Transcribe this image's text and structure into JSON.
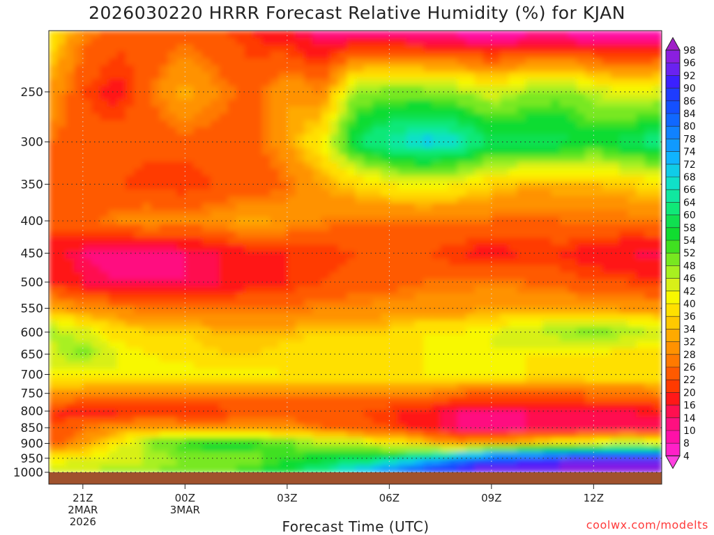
{
  "title": "2026030220 HRRR Forecast Relative Humidity (%) for KJAN",
  "xlabel": "Forecast Time (UTC)",
  "credit": "coolwx.com/modelts",
  "colors": {
    "ground": "#a0522d",
    "grid": "#333333"
  },
  "chart_data": {
    "type": "heatmap",
    "title": "2026030220 HRRR Forecast Relative Humidity (%) for KJAN",
    "xlabel": "Forecast Time (UTC)",
    "ylabel": "",
    "x_tick_labels": [
      {
        "lines": [
          "21Z",
          "2MAR",
          "2026"
        ],
        "hour": 1
      },
      {
        "lines": [
          "00Z",
          "3MAR"
        ],
        "hour": 4
      },
      {
        "lines": [
          "03Z"
        ],
        "hour": 7
      },
      {
        "lines": [
          "06Z"
        ],
        "hour": 10
      },
      {
        "lines": [
          "09Z"
        ],
        "hour": 13
      },
      {
        "lines": [
          "12Z"
        ],
        "hour": 16
      }
    ],
    "x_hours": [
      0,
      1,
      2,
      3,
      4,
      5,
      6,
      7,
      8,
      9,
      10,
      11,
      12,
      13,
      14,
      15,
      16,
      17,
      18
    ],
    "y_tick_labels": [
      "250",
      "300",
      "350",
      "400",
      "450",
      "500",
      "550",
      "600",
      "650",
      "700",
      "750",
      "800",
      "850",
      "900",
      "950",
      "1000"
    ],
    "pressure_levels": [
      200,
      250,
      300,
      350,
      400,
      450,
      500,
      550,
      600,
      650,
      700,
      750,
      800,
      850,
      900,
      950,
      1000
    ],
    "rh": [
      [
        40,
        28,
        24,
        22,
        24,
        22,
        20,
        16,
        12,
        10,
        10,
        8,
        8,
        6,
        8,
        8,
        6,
        6,
        8
      ],
      [
        32,
        22,
        18,
        26,
        34,
        28,
        24,
        32,
        28,
        48,
        50,
        50,
        48,
        44,
        48,
        50,
        46,
        42,
        44
      ],
      [
        26,
        24,
        24,
        24,
        24,
        24,
        24,
        32,
        40,
        60,
        66,
        70,
        68,
        60,
        60,
        60,
        56,
        60,
        64
      ],
      [
        24,
        22,
        22,
        20,
        20,
        22,
        22,
        26,
        32,
        36,
        40,
        42,
        40,
        36,
        34,
        34,
        34,
        36,
        38
      ],
      [
        24,
        24,
        28,
        30,
        28,
        30,
        34,
        30,
        28,
        26,
        26,
        26,
        26,
        26,
        24,
        26,
        26,
        26,
        28
      ],
      [
        18,
        14,
        12,
        12,
        14,
        16,
        18,
        20,
        20,
        22,
        22,
        22,
        20,
        18,
        20,
        20,
        18,
        16,
        14
      ],
      [
        20,
        16,
        14,
        14,
        14,
        16,
        18,
        20,
        22,
        24,
        24,
        26,
        26,
        28,
        26,
        24,
        22,
        22,
        20
      ],
      [
        32,
        30,
        28,
        26,
        26,
        26,
        26,
        26,
        28,
        28,
        30,
        30,
        30,
        32,
        32,
        32,
        32,
        30,
        30
      ],
      [
        48,
        44,
        38,
        36,
        36,
        34,
        34,
        34,
        36,
        36,
        36,
        40,
        40,
        42,
        46,
        48,
        50,
        48,
        46
      ],
      [
        44,
        50,
        42,
        40,
        38,
        36,
        36,
        38,
        40,
        36,
        38,
        40,
        42,
        42,
        40,
        40,
        40,
        38,
        38
      ],
      [
        40,
        40,
        42,
        42,
        42,
        42,
        42,
        40,
        40,
        40,
        40,
        40,
        42,
        40,
        40,
        38,
        40,
        40,
        40
      ],
      [
        32,
        30,
        28,
        28,
        28,
        28,
        28,
        28,
        28,
        28,
        28,
        28,
        26,
        24,
        24,
        24,
        26,
        26,
        28
      ],
      [
        20,
        18,
        18,
        20,
        20,
        20,
        22,
        22,
        22,
        22,
        20,
        18,
        14,
        14,
        14,
        14,
        16,
        16,
        18
      ],
      [
        22,
        26,
        30,
        32,
        30,
        30,
        30,
        30,
        26,
        24,
        22,
        18,
        14,
        12,
        14,
        14,
        14,
        14,
        14
      ],
      [
        24,
        30,
        40,
        50,
        56,
        58,
        56,
        52,
        48,
        46,
        40,
        36,
        30,
        32,
        36,
        40,
        44,
        48,
        44
      ],
      [
        40,
        42,
        44,
        46,
        48,
        48,
        50,
        54,
        56,
        58,
        62,
        70,
        78,
        86,
        88,
        90,
        92,
        92,
        92
      ],
      [
        44,
        46,
        48,
        48,
        50,
        52,
        54,
        58,
        64,
        72,
        80,
        88,
        94,
        96,
        98,
        98,
        98,
        98,
        98
      ]
    ],
    "colorbar_labels": [
      "98",
      "96",
      "92",
      "90",
      "86",
      "84",
      "80",
      "78",
      "74",
      "72",
      "68",
      "66",
      "64",
      "60",
      "58",
      "54",
      "52",
      "48",
      "46",
      "42",
      "40",
      "36",
      "34",
      "32",
      "28",
      "26",
      "22",
      "20",
      "16",
      "14",
      "10",
      "8",
      "4"
    ],
    "colorbar_colors": [
      "#a020c8",
      "#8a1fe0",
      "#6a22f0",
      "#3b20ff",
      "#1e3cff",
      "#1450ff",
      "#1068ff",
      "#1082ff",
      "#109aff",
      "#10b4ff",
      "#10cce8",
      "#10e0c8",
      "#10e8a0",
      "#10e878",
      "#10e050",
      "#10dc30",
      "#40e020",
      "#78e820",
      "#a8f020",
      "#d8f018",
      "#f8f800",
      "#ffe000",
      "#ffc800",
      "#ffaa00",
      "#ff9200",
      "#ff7a00",
      "#ff5a00",
      "#ff3a00",
      "#ff1818",
      "#ff1050",
      "#ff1080",
      "#ff10a8",
      "#ff20c8",
      "#ff40e0"
    ],
    "grid": true
  }
}
